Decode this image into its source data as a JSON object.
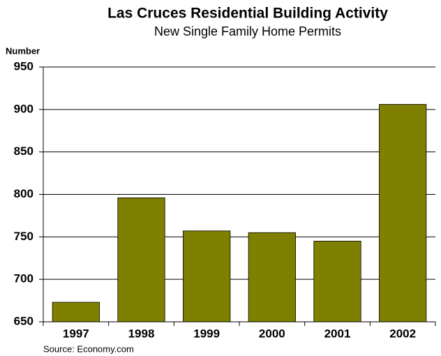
{
  "chart_data": {
    "type": "bar",
    "title": "Las Cruces Residential Building Activity",
    "subtitle": "New Single Family Home Permits",
    "y_label": "Number",
    "source": "Source: Economy.com",
    "categories": [
      "1997",
      "1998",
      "1999",
      "2000",
      "2001",
      "2002"
    ],
    "values": [
      673,
      796,
      757,
      755,
      745,
      906
    ],
    "color": "#808000",
    "ylim": [
      650,
      950
    ],
    "yticks": [
      650,
      700,
      750,
      800,
      850,
      900,
      950
    ],
    "grid": true
  }
}
